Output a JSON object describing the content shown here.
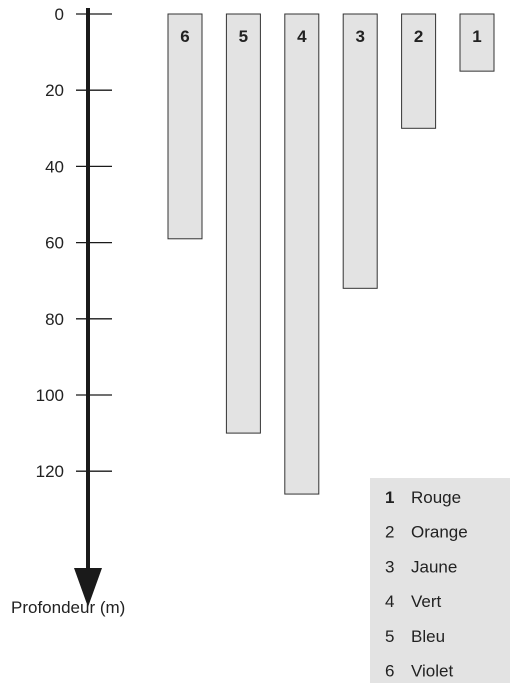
{
  "chart_data": {
    "type": "bar",
    "orientation": "vertical-downward",
    "categories": [
      "6",
      "5",
      "4",
      "3",
      "2",
      "1"
    ],
    "values": [
      59,
      110,
      126,
      72,
      30,
      15
    ],
    "ylabel": "Profondeur (m)",
    "yticks": [
      0,
      20,
      40,
      60,
      80,
      100,
      120
    ],
    "ylim": [
      0,
      150
    ],
    "grid": false,
    "legend_position": "bottom-right",
    "legend": [
      {
        "key": "1",
        "label": "Rouge",
        "bold": true
      },
      {
        "key": "2",
        "label": "Orange"
      },
      {
        "key": "3",
        "label": "Jaune"
      },
      {
        "key": "4",
        "label": "Vert"
      },
      {
        "key": "5",
        "label": "Bleu"
      },
      {
        "key": "6",
        "label": "Violet"
      }
    ],
    "colors": {
      "bar_fill": "#e3e3e3",
      "bar_stroke": "#333333",
      "axis": "#1a1a1a",
      "legend_bg": "#e3e3e3"
    }
  }
}
